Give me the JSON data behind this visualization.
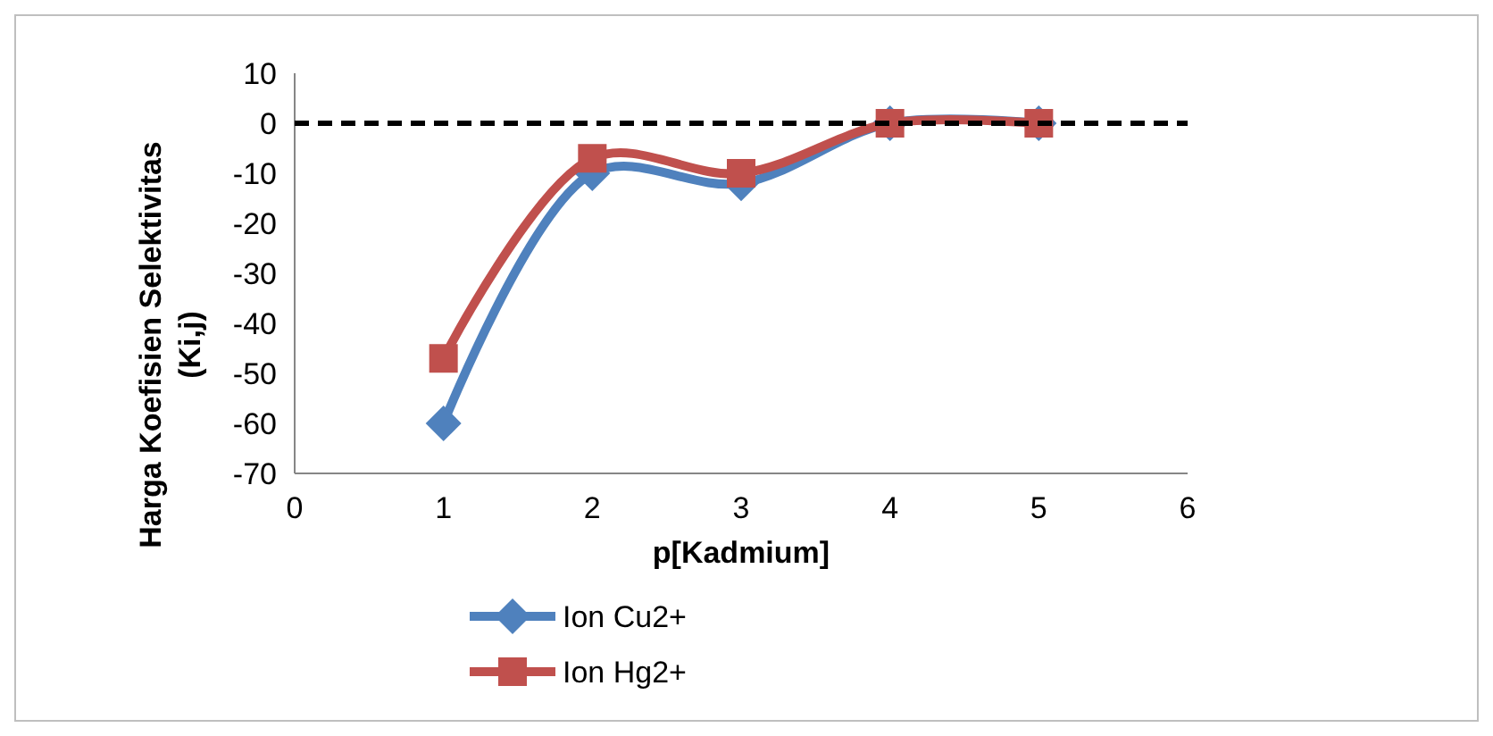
{
  "chart_data": {
    "type": "line",
    "xlabel": "p[Kadmium]",
    "ylabel": "Harga Koefisien Selektivitas\n(Ki,j)",
    "x": [
      1,
      2,
      3,
      4,
      5
    ],
    "series": [
      {
        "name": "Ion Cu2+",
        "color": "#4f81bd",
        "values": [
          -60,
          -10,
          -12,
          0,
          0
        ],
        "marker": "diamond"
      },
      {
        "name": "Ion Hg2+",
        "color": "#c0504d",
        "values": [
          -47,
          -7,
          -10,
          0,
          0
        ],
        "marker": "square"
      }
    ],
    "xlim": [
      0,
      6
    ],
    "xticks": [
      0,
      1,
      2,
      3,
      4,
      5,
      6
    ],
    "ylim": [
      -70,
      10
    ],
    "yticks": [
      10,
      0,
      -10,
      -20,
      -30,
      -40,
      -50,
      -60,
      -70
    ],
    "ref_lines": [
      {
        "axis": "y",
        "value": 0,
        "color": "#000000",
        "line_style": "dashed"
      }
    ],
    "grid": false,
    "legend": "bottom",
    "line_style": "solid"
  }
}
